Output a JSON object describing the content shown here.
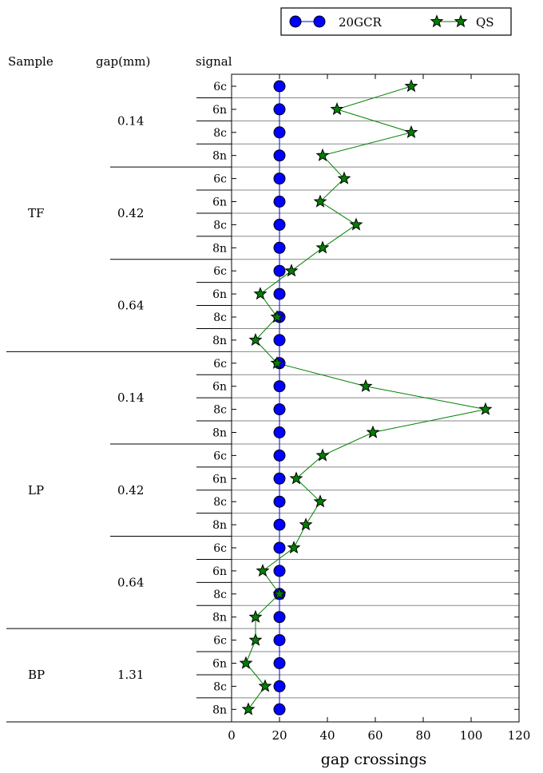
{
  "chart_data": {
    "type": "line",
    "orientation": "horizontal",
    "xlabel": "gap crossings",
    "xlim": [
      0,
      120
    ],
    "xticks": [
      0,
      20,
      40,
      60,
      80,
      100,
      120
    ],
    "table_headers": [
      "Sample",
      "gap(mm)",
      "signal"
    ],
    "groups": [
      {
        "sample": "TF",
        "gaps": [
          {
            "gap": "0.14",
            "signals": [
              "6c",
              "6n",
              "8c",
              "8n"
            ]
          },
          {
            "gap": "0.42",
            "signals": [
              "6c",
              "6n",
              "8c",
              "8n"
            ]
          },
          {
            "gap": "0.64",
            "signals": [
              "6c",
              "6n",
              "8c",
              "8n"
            ]
          }
        ]
      },
      {
        "sample": "LP",
        "gaps": [
          {
            "gap": "0.14",
            "signals": [
              "6c",
              "6n",
              "8c",
              "8n"
            ]
          },
          {
            "gap": "0.42",
            "signals": [
              "6c",
              "6n",
              "8c",
              "8n"
            ]
          },
          {
            "gap": "0.64",
            "signals": [
              "6c",
              "6n",
              "8c",
              "8n"
            ]
          }
        ]
      },
      {
        "sample": "BP",
        "gaps": [
          {
            "gap": "1.31",
            "signals": [
              "6c",
              "6n",
              "8c",
              "8n"
            ]
          }
        ]
      }
    ],
    "series": [
      {
        "name": "20GCR",
        "marker": "circle",
        "color": "#0000ff",
        "values": [
          20,
          20,
          20,
          20,
          20,
          20,
          20,
          20,
          20,
          20,
          20,
          20,
          20,
          20,
          20,
          20,
          20,
          20,
          20,
          20,
          20,
          20,
          20,
          20,
          20,
          20,
          20,
          20
        ]
      },
      {
        "name": "QS",
        "marker": "star",
        "color": "#008000",
        "values": [
          75,
          44,
          75,
          38,
          47,
          37,
          52,
          38,
          25,
          12,
          19,
          10,
          19,
          56,
          106,
          59,
          38,
          27,
          37,
          31,
          26,
          13,
          20,
          10,
          10,
          6,
          14,
          7
        ]
      }
    ],
    "legend_position": "top-right",
    "grid": "horizontal"
  }
}
